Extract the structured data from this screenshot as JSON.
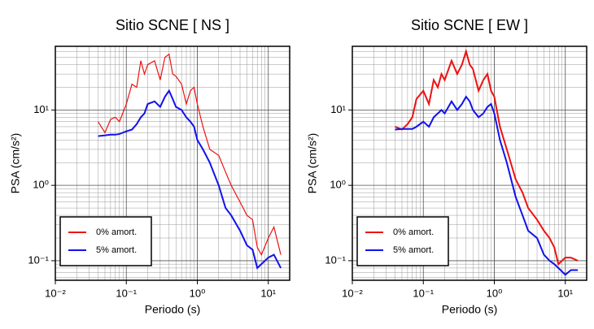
{
  "chart_data": [
    {
      "type": "line",
      "title": "Sitio SCNE [ NS ]",
      "x_label": "Periodo (s)",
      "y_label": "PSA (cm/s²)",
      "log_x": true,
      "log_y": true,
      "grid": true,
      "minor_grid": true,
      "legend": "lower left",
      "xlim": [
        0.01,
        20
      ],
      "ylim": [
        0.055,
        70
      ],
      "xticks": [
        {
          "value": 0.01,
          "label": "10⁻²"
        },
        {
          "value": 0.1,
          "label": "10⁻¹"
        },
        {
          "value": 1,
          "label": "10⁰"
        },
        {
          "value": 10,
          "label": "10¹"
        }
      ],
      "yticks": [
        {
          "value": 0.1,
          "label": "10⁻¹"
        },
        {
          "value": 1,
          "label": "10⁰"
        },
        {
          "value": 10,
          "label": "10¹"
        }
      ],
      "x": [
        0.04,
        0.05,
        0.06,
        0.07,
        0.08,
        0.1,
        0.12,
        0.14,
        0.16,
        0.18,
        0.2,
        0.25,
        0.3,
        0.35,
        0.4,
        0.45,
        0.5,
        0.6,
        0.7,
        0.8,
        0.9,
        1.0,
        1.2,
        1.5,
        2,
        2.5,
        3,
        4,
        5,
        6,
        7,
        8,
        10,
        12,
        15
      ],
      "series": [
        {
          "name": "0% amort.",
          "color": "#ee1111",
          "width": 1.2,
          "values": [
            7,
            5,
            7.5,
            8,
            7,
            12,
            22,
            20,
            45,
            30,
            40,
            45,
            25,
            50,
            55,
            30,
            28,
            22,
            12,
            18,
            20,
            12,
            6,
            3,
            2.5,
            1.5,
            1.0,
            0.6,
            0.4,
            0.35,
            0.15,
            0.12,
            0.2,
            0.28,
            0.12
          ]
        },
        {
          "name": "5% amort.",
          "color": "#1111ee",
          "width": 2,
          "values": [
            4.5,
            4.6,
            4.7,
            4.7,
            4.8,
            5.2,
            5.5,
            6.5,
            8,
            9,
            12,
            13,
            11,
            15,
            18,
            14,
            11,
            10,
            8,
            7,
            6,
            4,
            3,
            2,
            1,
            0.5,
            0.4,
            0.25,
            0.16,
            0.14,
            0.08,
            0.09,
            0.11,
            0.12,
            0.08
          ]
        }
      ]
    },
    {
      "type": "line",
      "title": "Sitio SCNE [ EW ]",
      "x_label": "Periodo (s)",
      "y_label": "PSA (cm/s²)",
      "log_x": true,
      "log_y": true,
      "grid": true,
      "minor_grid": true,
      "legend": "lower left",
      "xlim": [
        0.01,
        20
      ],
      "ylim": [
        0.055,
        70
      ],
      "xticks": [
        {
          "value": 0.01,
          "label": "10⁻²"
        },
        {
          "value": 0.1,
          "label": "10⁻¹"
        },
        {
          "value": 1,
          "label": "10⁰"
        },
        {
          "value": 10,
          "label": "10¹"
        }
      ],
      "yticks": [
        {
          "value": 0.1,
          "label": "10⁻¹"
        },
        {
          "value": 1,
          "label": "10⁰"
        },
        {
          "value": 10,
          "label": "10¹"
        }
      ],
      "x": [
        0.04,
        0.05,
        0.06,
        0.07,
        0.08,
        0.1,
        0.12,
        0.14,
        0.16,
        0.18,
        0.2,
        0.25,
        0.3,
        0.35,
        0.4,
        0.45,
        0.5,
        0.6,
        0.7,
        0.8,
        0.9,
        1.0,
        1.2,
        1.5,
        2,
        2.5,
        3,
        4,
        5,
        6,
        7,
        8,
        10,
        12,
        15
      ],
      "series": [
        {
          "name": "0% amort.",
          "color": "#ee1111",
          "width": 2,
          "values": [
            6,
            5.5,
            6.5,
            8,
            14,
            18,
            12,
            25,
            20,
            30,
            25,
            45,
            30,
            40,
            60,
            40,
            35,
            18,
            25,
            30,
            18,
            15,
            6,
            3,
            1.2,
            0.8,
            0.5,
            0.35,
            0.25,
            0.2,
            0.15,
            0.09,
            0.11,
            0.11,
            0.1
          ]
        },
        {
          "name": "5% amort.",
          "color": "#1111ee",
          "width": 2,
          "values": [
            5.5,
            5.6,
            5.6,
            5.6,
            6,
            7,
            6,
            8,
            9,
            10,
            9,
            13,
            10,
            12,
            15,
            13,
            10,
            8,
            9,
            11,
            12,
            9,
            4,
            2,
            0.7,
            0.4,
            0.25,
            0.2,
            0.12,
            0.1,
            0.09,
            0.08,
            0.065,
            0.075,
            0.075
          ]
        }
      ]
    }
  ]
}
